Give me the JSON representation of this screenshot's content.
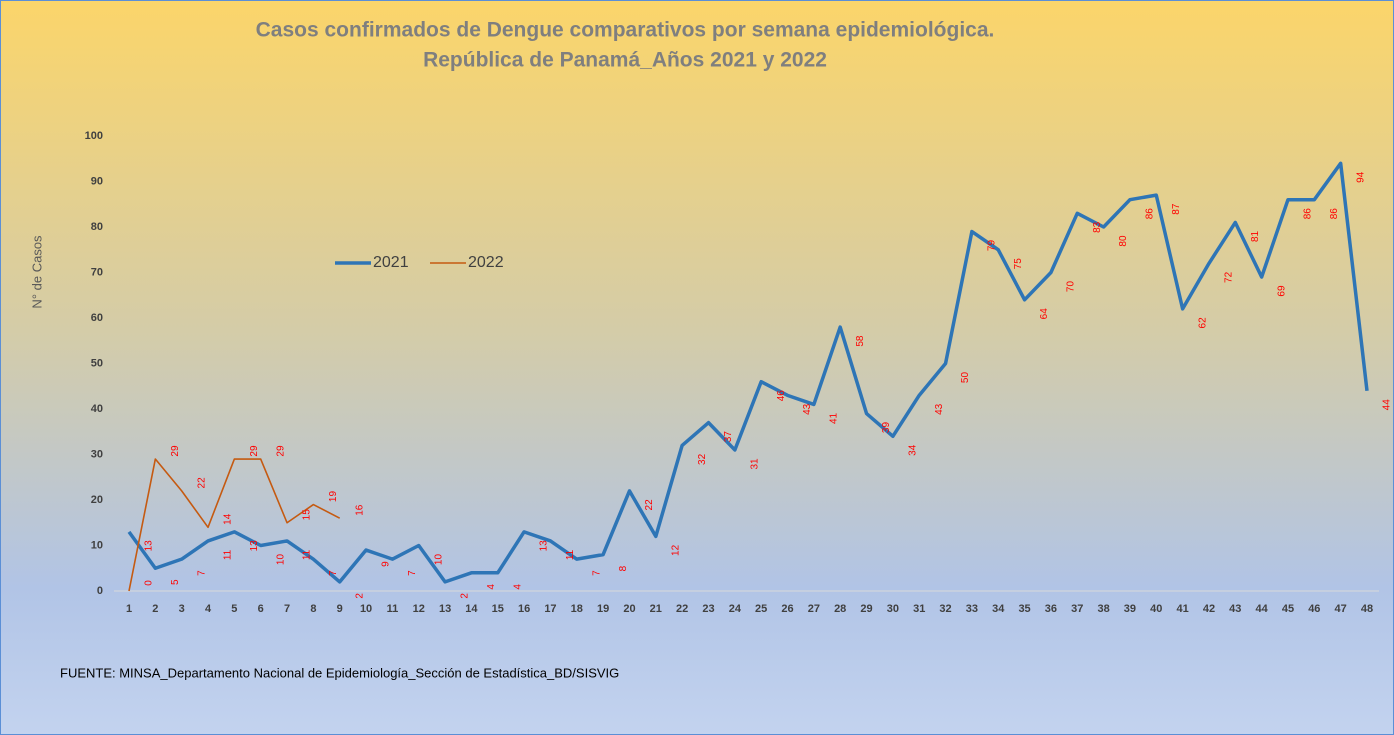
{
  "chart_data": {
    "type": "line",
    "title": "Casos confirmados de Dengue comparativos por semana epidemiológica.",
    "subtitle": "República de Panamá_Años 2021 y 2022",
    "y_label": "N° de Casos",
    "source": "FUENTE: MINSA_Departamento Nacional de Epidemiología_Sección de Estadística_BD/SISVIG",
    "x": [
      1,
      2,
      3,
      4,
      5,
      6,
      7,
      8,
      9,
      10,
      11,
      12,
      13,
      14,
      15,
      16,
      17,
      18,
      19,
      20,
      21,
      22,
      23,
      24,
      25,
      26,
      27,
      28,
      29,
      30,
      31,
      32,
      33,
      34,
      35,
      36,
      37,
      38,
      39,
      40,
      41,
      42,
      43,
      44,
      45,
      46,
      47,
      48
    ],
    "xlim": [
      1,
      48
    ],
    "xticks": [
      1,
      2,
      3,
      4,
      5,
      6,
      7,
      8,
      9,
      10,
      11,
      12,
      13,
      14,
      15,
      16,
      17,
      18,
      19,
      20,
      21,
      22,
      23,
      24,
      25,
      26,
      27,
      28,
      29,
      30,
      31,
      32,
      33,
      34,
      35,
      36,
      37,
      38,
      39,
      40,
      41,
      42,
      43,
      44,
      45,
      46,
      47,
      48
    ],
    "ylim": [
      0,
      100
    ],
    "yticks": [
      0,
      10,
      20,
      30,
      40,
      50,
      60,
      70,
      80,
      90,
      100
    ],
    "legend": "upper left",
    "series": [
      {
        "name": "2021",
        "color": "#2e75b6",
        "values": [
          13,
          5,
          7,
          11,
          13,
          10,
          11,
          7,
          2,
          9,
          7,
          10,
          2,
          4,
          4,
          13,
          11,
          7,
          8,
          22,
          12,
          32,
          37,
          31,
          46,
          43,
          41,
          58,
          39,
          34,
          43,
          50,
          79,
          75,
          64,
          70,
          83,
          80,
          86,
          87,
          62,
          72,
          81,
          69,
          86,
          86,
          94,
          44
        ]
      },
      {
        "name": "2022",
        "color": "#c55a11",
        "values": [
          0,
          29,
          22,
          14,
          29,
          29,
          15,
          19,
          16,
          null,
          null,
          null,
          null,
          null,
          null,
          null,
          null,
          null,
          null,
          null,
          null,
          null,
          null,
          null,
          null,
          null,
          null,
          null,
          null,
          null,
          null,
          null,
          null,
          null,
          null,
          null,
          null,
          null,
          null,
          null,
          null,
          null,
          null,
          null,
          null,
          null,
          null,
          null
        ]
      }
    ]
  }
}
